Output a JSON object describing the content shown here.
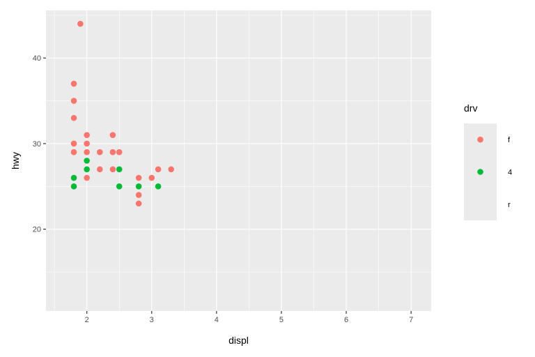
{
  "chart_data": {
    "type": "scatter",
    "xlabel": "displ",
    "ylabel": "hwy",
    "xlim": [
      1.37,
      7.31
    ],
    "ylim": [
      10.44,
      45.56
    ],
    "x_ticks": [
      2,
      3,
      4,
      5,
      6,
      7
    ],
    "y_ticks": [
      20,
      30,
      40
    ],
    "grid": true,
    "legend": {
      "title": "drv",
      "placement": "right",
      "entries": [
        "f",
        "4",
        "r"
      ]
    },
    "colors": {
      "f": "#F8766D",
      "4": "#00BA38",
      "panel": "#EBEBEB",
      "grid": "#FFFFFF"
    },
    "series": [
      {
        "name": "f",
        "points": [
          [
            1.9,
            44
          ],
          [
            1.8,
            37
          ],
          [
            1.8,
            35
          ],
          [
            1.8,
            33
          ],
          [
            1.8,
            30
          ],
          [
            1.8,
            29
          ],
          [
            2.0,
            31
          ],
          [
            2.0,
            30
          ],
          [
            2.0,
            29
          ],
          [
            2.0,
            26
          ],
          [
            2.2,
            29
          ],
          [
            2.2,
            27
          ],
          [
            2.4,
            31
          ],
          [
            2.4,
            29
          ],
          [
            2.4,
            27
          ],
          [
            2.5,
            29
          ],
          [
            2.8,
            26
          ],
          [
            2.8,
            24
          ],
          [
            2.8,
            23
          ],
          [
            3.0,
            26
          ],
          [
            3.1,
            27
          ],
          [
            3.3,
            27
          ]
        ]
      },
      {
        "name": "4",
        "points": [
          [
            1.8,
            26
          ],
          [
            1.8,
            25
          ],
          [
            2.0,
            28
          ],
          [
            2.0,
            27
          ],
          [
            2.5,
            27
          ],
          [
            2.5,
            25
          ],
          [
            2.8,
            25
          ],
          [
            3.1,
            25
          ]
        ]
      }
    ]
  }
}
